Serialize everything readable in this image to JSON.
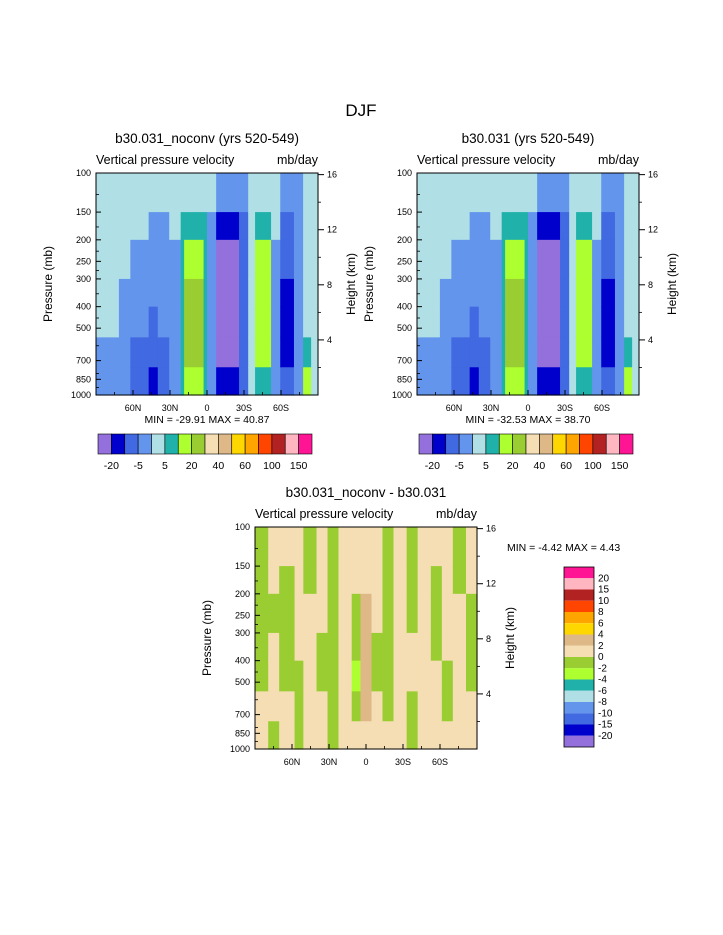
{
  "figure": {
    "title": "DJF"
  },
  "colors": {
    "abs": [
      "#9370DB",
      "#0000CD",
      "#4169E1",
      "#6495ED",
      "#B0E0E6",
      "#20B2AA",
      "#ADFF2F",
      "#9ACD32",
      "#F5DEB3",
      "#DEB887",
      "#FFD700",
      "#FFA500",
      "#FF4500",
      "#B22222",
      "#FFB6C1",
      "#FF1493"
    ],
    "diff": [
      "#9370DB",
      "#0000CD",
      "#4169E1",
      "#6495ED",
      "#B0E0E6",
      "#20B2AA",
      "#ADFF2F",
      "#9ACD32",
      "#F5DEB3",
      "#DEB887",
      "#FFD700",
      "#FFA500",
      "#FF4500",
      "#B22222",
      "#FFB6C1",
      "#FF1493"
    ]
  },
  "chart_data": [
    {
      "type": "heatmap",
      "id": "noconv",
      "title": "b30.031_noconv (yrs 520-549)",
      "subtitle_left": "Vertical pressure velocity",
      "subtitle_right": "mb/day",
      "xlabel": "",
      "ylabel": "Pressure (mb)",
      "y2label": "Height (km)",
      "x_ticks": [
        "60N",
        "30N",
        "0",
        "30S",
        "60S"
      ],
      "x_tick_values": [
        60,
        30,
        0,
        -30,
        -60
      ],
      "xlim": [
        90,
        -90
      ],
      "y_ticks": [
        "100",
        "150",
        "200",
        "250",
        "300",
        "400",
        "500",
        "700",
        "850",
        "1000"
      ],
      "y_tick_values": [
        100,
        150,
        200,
        250,
        300,
        400,
        500,
        700,
        850,
        1000
      ],
      "ylim": [
        100,
        1000
      ],
      "y2_ticks": [
        "16",
        "12",
        "8",
        "4"
      ],
      "y2_tick_values": [
        16,
        12,
        8,
        4
      ],
      "stats": "MIN = -29.91   MAX =  40.87",
      "min": -29.91,
      "max": 40.87,
      "colorbar_labels": [
        "-20",
        "-5",
        "5",
        "20",
        "40",
        "60",
        "100",
        "150"
      ],
      "levels": [
        -20,
        -10,
        -5,
        -2,
        2,
        5,
        10,
        20,
        30,
        40,
        50,
        60,
        80,
        100,
        120,
        150
      ]
    },
    {
      "type": "heatmap",
      "id": "control",
      "title": "b30.031 (yrs 520-549)",
      "subtitle_left": "Vertical pressure velocity",
      "subtitle_right": "mb/day",
      "xlabel": "",
      "ylabel": "Pressure (mb)",
      "y2label": "Height (km)",
      "x_ticks": [
        "60N",
        "30N",
        "0",
        "30S",
        "60S"
      ],
      "x_tick_values": [
        60,
        30,
        0,
        -30,
        -60
      ],
      "xlim": [
        90,
        -90
      ],
      "y_ticks": [
        "100",
        "150",
        "200",
        "250",
        "300",
        "400",
        "500",
        "700",
        "850",
        "1000"
      ],
      "y_tick_values": [
        100,
        150,
        200,
        250,
        300,
        400,
        500,
        700,
        850,
        1000
      ],
      "ylim": [
        100,
        1000
      ],
      "y2_ticks": [
        "16",
        "12",
        "8",
        "4"
      ],
      "y2_tick_values": [
        16,
        12,
        8,
        4
      ],
      "stats": "MIN = -32.53   MAX =  38.70",
      "min": -32.53,
      "max": 38.7,
      "colorbar_labels": [
        "-20",
        "-5",
        "5",
        "20",
        "40",
        "60",
        "100",
        "150"
      ],
      "levels": [
        -20,
        -10,
        -5,
        -2,
        2,
        5,
        10,
        20,
        30,
        40,
        50,
        60,
        80,
        100,
        120,
        150
      ]
    },
    {
      "type": "heatmap",
      "id": "diff",
      "title": "b30.031_noconv - b30.031",
      "subtitle_left": "Vertical pressure velocity",
      "subtitle_right": "mb/day",
      "xlabel": "",
      "ylabel": "Pressure (mb)",
      "y2label": "Height (km)",
      "x_ticks": [
        "60N",
        "30N",
        "0",
        "30S",
        "60S"
      ],
      "x_tick_values": [
        60,
        30,
        0,
        -30,
        -60
      ],
      "xlim": [
        90,
        -90
      ],
      "y_ticks": [
        "100",
        "150",
        "200",
        "250",
        "300",
        "400",
        "500",
        "700",
        "850",
        "1000"
      ],
      "y_tick_values": [
        100,
        150,
        200,
        250,
        300,
        400,
        500,
        700,
        850,
        1000
      ],
      "ylim": [
        100,
        1000
      ],
      "y2_ticks": [
        "16",
        "12",
        "8",
        "4"
      ],
      "y2_tick_values": [
        16,
        12,
        8,
        4
      ],
      "stats": "MIN =  -4.42   MAX =   4.43",
      "min": -4.42,
      "max": 4.43,
      "colorbar_labels": [
        "20",
        "15",
        "10",
        "8",
        "6",
        "4",
        "2",
        "0",
        "-2",
        "-4",
        "-6",
        "-8",
        "-10",
        "-15",
        "-20"
      ],
      "levels": [
        -20,
        -15,
        -10,
        -8,
        -6,
        -4,
        -2,
        0,
        2,
        4,
        6,
        8,
        10,
        15,
        20
      ]
    }
  ]
}
